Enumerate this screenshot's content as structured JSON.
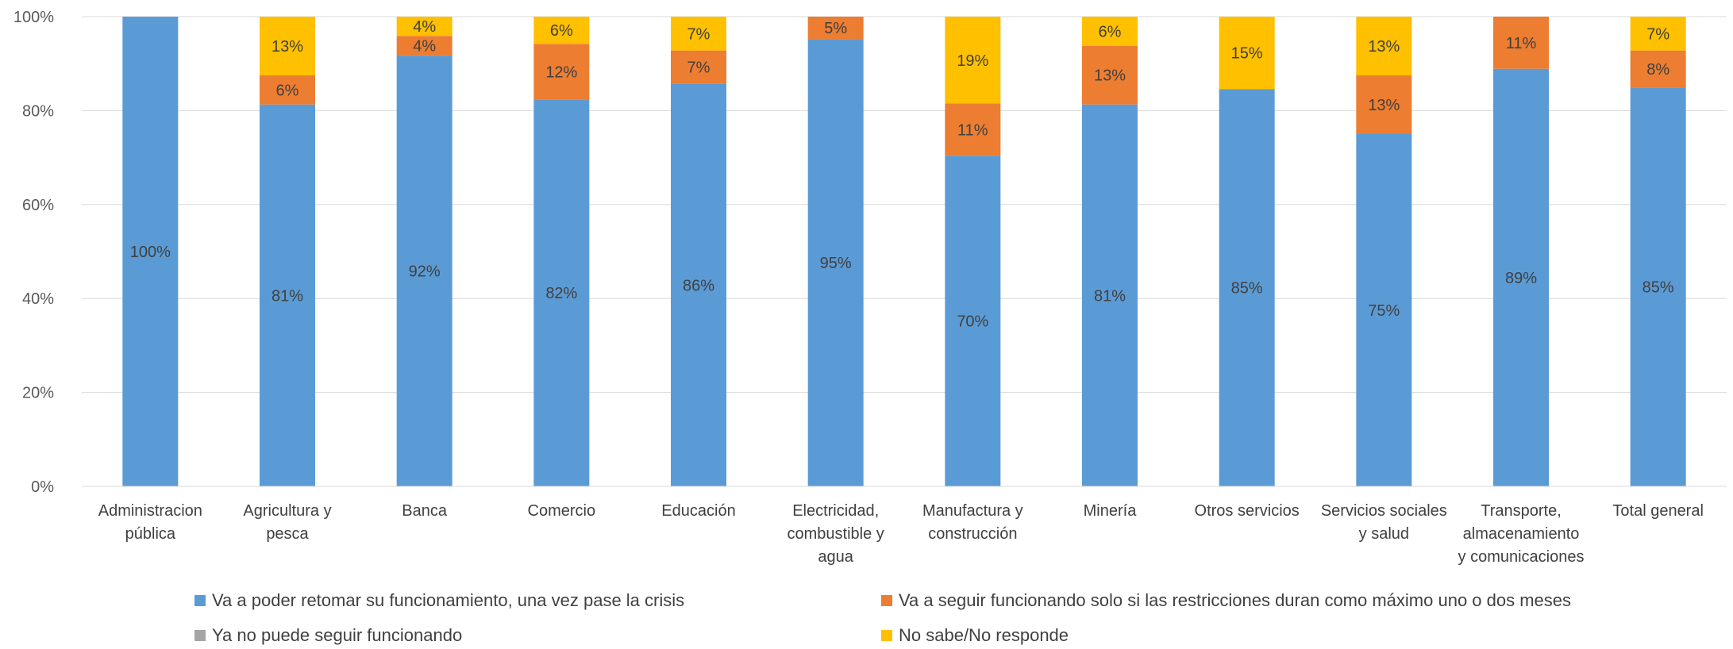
{
  "chart_data": {
    "type": "bar",
    "stacked": true,
    "grid": true,
    "legend_position": "bottom",
    "ylim": [
      0,
      100
    ],
    "yticks": [
      "0%",
      "20%",
      "40%",
      "60%",
      "80%",
      "100%"
    ],
    "categories": [
      [
        "Administracion",
        "pública"
      ],
      [
        "Agricultura y",
        "pesca"
      ],
      [
        "Banca"
      ],
      [
        "Comercio"
      ],
      [
        "Educación"
      ],
      [
        "Electricidad,",
        "combustible y",
        "agua"
      ],
      [
        "Manufactura y",
        "construcción"
      ],
      [
        "Minería"
      ],
      [
        "Otros servicios"
      ],
      [
        "Servicios sociales",
        "y salud"
      ],
      [
        "Transporte,",
        "almacenamiento",
        "y comunicaciones"
      ],
      [
        "Total general"
      ]
    ],
    "series": [
      {
        "name": "Va a poder retomar su funcionamiento, una vez pase la crisis",
        "color": "#5B9BD5",
        "values": [
          100,
          81.3,
          91.7,
          82.4,
          85.7,
          95.2,
          70.4,
          81.3,
          84.6,
          75.0,
          88.9,
          84.9
        ],
        "labels": [
          "100%",
          "81%",
          "92%",
          "82%",
          "86%",
          "95%",
          "70%",
          "81%",
          "85%",
          "75%",
          "89%",
          "85%"
        ]
      },
      {
        "name": "Va a seguir funcionando solo si las restricciones duran como máximo uno o dos meses",
        "color": "#ED7D31",
        "values": [
          0,
          6.2,
          4.2,
          11.8,
          7.1,
          4.8,
          11.1,
          12.5,
          0,
          12.5,
          11.1,
          7.9
        ],
        "labels": [
          "",
          "6%",
          "4%",
          "12%",
          "7%",
          "5%",
          "11%",
          "13%",
          "",
          "13%",
          "11%",
          "8%"
        ]
      },
      {
        "name": "Ya no puede seguir funcionando",
        "color": "#A5A5A5",
        "values": [
          0,
          0,
          0,
          0,
          0,
          0,
          0,
          0,
          0,
          0,
          0,
          0
        ],
        "labels": [
          "",
          "",
          "",
          "",
          "",
          "",
          "",
          "",
          "",
          "",
          "",
          ""
        ]
      },
      {
        "name": "No sabe/No responde",
        "color": "#FFC000",
        "values": [
          0,
          12.5,
          4.1,
          5.8,
          7.2,
          0,
          18.5,
          6.2,
          15.4,
          12.5,
          0,
          7.2
        ],
        "labels": [
          "",
          "13%",
          "4%",
          "6%",
          "7%",
          "",
          "19%",
          "6%",
          "15%",
          "13%",
          "",
          "7%"
        ]
      }
    ]
  }
}
